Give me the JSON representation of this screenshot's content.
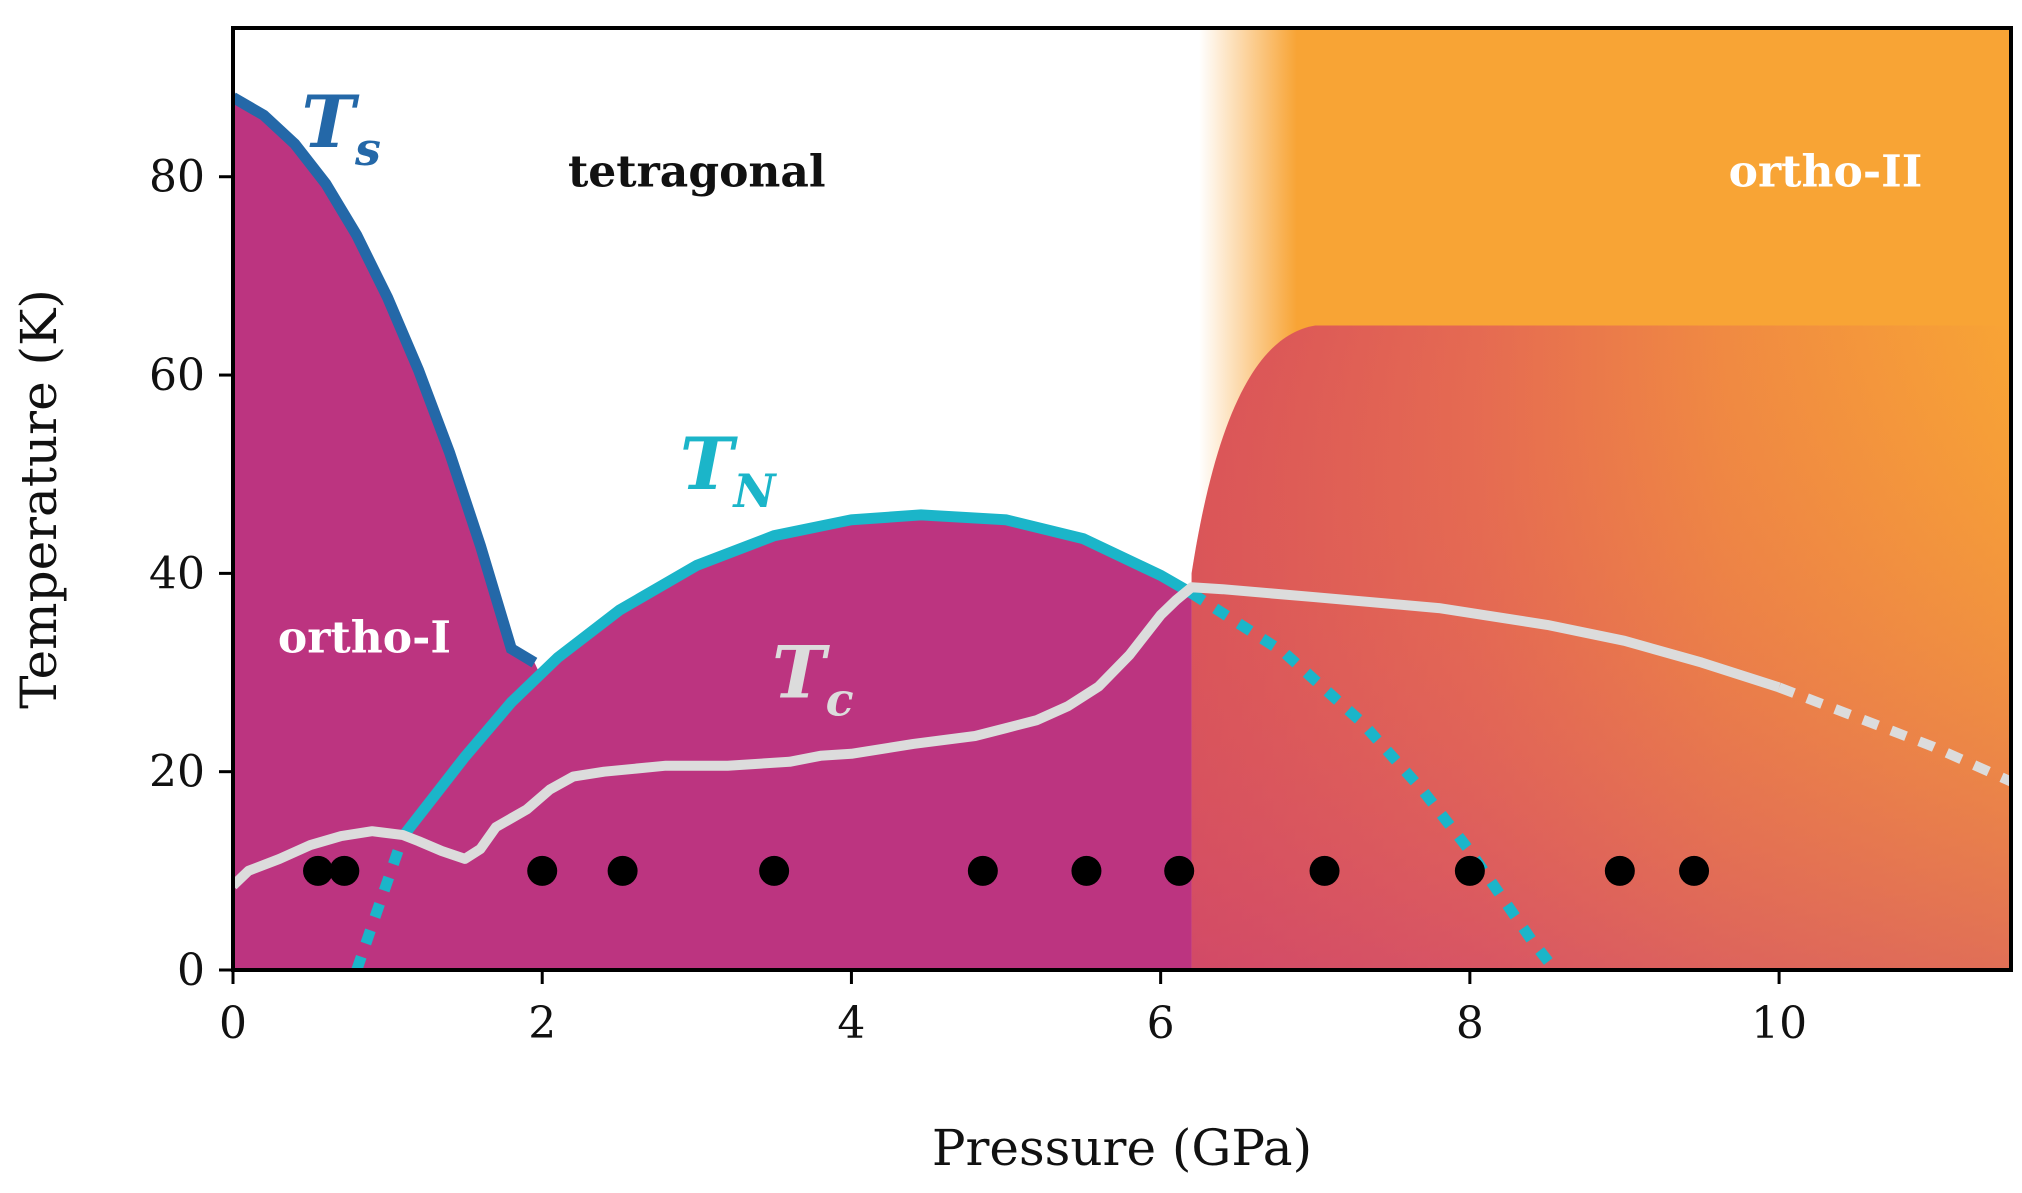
{
  "chart_data": {
    "type": "line",
    "title": "",
    "xlabel": "Pressure (GPa)",
    "ylabel": "Temperature (K)",
    "xlim": [
      0,
      11.5
    ],
    "ylim": [
      0,
      95
    ],
    "xticks": [
      0,
      2,
      4,
      6,
      8,
      10
    ],
    "xtick_labels": [
      "0",
      "2",
      "4",
      "6",
      "8",
      "10"
    ],
    "yticks": [
      0,
      20,
      40,
      60,
      80
    ],
    "ytick_labels": [
      "0",
      "20",
      "40",
      "60",
      "80"
    ],
    "grid": false,
    "colors": {
      "ortho_I": "#bc3480",
      "ortho_II": "#f8a435",
      "ortho_II_mid": "#e8704f",
      "Ts": "#2468a8",
      "TN": "#1bb5c9",
      "Tc": "#dcdcdc",
      "points": "#000000"
    },
    "regions": [
      {
        "name": "tetragonal",
        "label": "tetragonal",
        "color": "#111111"
      },
      {
        "name": "ortho-I",
        "label": "ortho-I",
        "color": "#ffffff"
      },
      {
        "name": "ortho-II",
        "label": "ortho-II",
        "color": "#ffffff"
      }
    ],
    "series": [
      {
        "name": "Ts",
        "label_main": "T",
        "label_sub": "s",
        "style": "solid",
        "x": [
          0,
          0.2,
          0.4,
          0.6,
          0.8,
          1.0,
          1.2,
          1.4,
          1.6,
          1.8,
          1.95
        ],
        "y": [
          88,
          86.2,
          83.3,
          79.3,
          74.1,
          67.8,
          60.5,
          52.2,
          42.8,
          32.4,
          31
        ]
      },
      {
        "name": "TN",
        "label_main": "T",
        "label_sub": "N",
        "style": "solid",
        "x": [
          1.1,
          1.3,
          1.5,
          1.8,
          2.1,
          2.5,
          3.0,
          3.5,
          4.0,
          4.45,
          5.0,
          5.5,
          6.0,
          6.2
        ],
        "y": [
          13.5,
          17.5,
          21.5,
          27,
          31.5,
          36.3,
          40.8,
          43.8,
          45.4,
          45.9,
          45.4,
          43.5,
          39.8,
          38
        ]
      },
      {
        "name": "TN-dotted",
        "style": "dotted",
        "x_left": [
          0.8,
          0.9,
          1.0,
          1.1
        ],
        "y_left": [
          0,
          4.5,
          9,
          13.5
        ],
        "x_right": [
          6.2,
          6.8,
          7.3,
          7.7,
          8.0,
          8.2,
          8.4,
          8.55
        ],
        "y_right": [
          38,
          32,
          25,
          18,
          12,
          7.5,
          3,
          0
        ]
      },
      {
        "name": "Tc",
        "label_main": "T",
        "label_sub": "c",
        "style": "solid",
        "x": [
          0,
          0.1,
          0.3,
          0.5,
          0.7,
          0.9,
          1.1,
          1.2,
          1.35,
          1.5,
          1.6,
          1.7,
          1.9,
          2.05,
          2.2,
          2.4,
          2.8,
          3.2,
          3.6,
          3.8,
          4.0,
          4.4,
          4.8,
          5.0,
          5.2,
          5.4,
          5.6,
          5.8,
          6.0,
          6.1,
          6.2,
          6.4,
          7.0,
          7.8,
          8.5,
          9.0,
          9.5,
          10.0
        ],
        "y": [
          8.5,
          10,
          11.2,
          12.6,
          13.5,
          14,
          13.6,
          13,
          12,
          11.2,
          12.2,
          14.4,
          16.2,
          18.2,
          19.5,
          20,
          20.6,
          20.6,
          21,
          21.6,
          21.8,
          22.8,
          23.6,
          24.4,
          25.2,
          26.6,
          28.6,
          31.8,
          35.8,
          37.3,
          38.6,
          38.4,
          37.6,
          36.5,
          34.8,
          33.2,
          31,
          28.5
        ]
      },
      {
        "name": "Tc-dotted",
        "style": "dotted",
        "x": [
          10.0,
          10.5,
          11.0,
          11.5
        ],
        "y": [
          28.5,
          25.5,
          22.5,
          19
        ]
      }
    ],
    "points": {
      "name": "measurement-points",
      "x": [
        0.55,
        0.72,
        2.0,
        2.52,
        3.5,
        4.85,
        5.52,
        6.12,
        7.06,
        8.0,
        8.97,
        9.45
      ],
      "y": [
        10,
        10,
        10,
        10,
        10,
        10,
        10,
        10,
        10,
        10,
        10,
        10
      ]
    }
  }
}
